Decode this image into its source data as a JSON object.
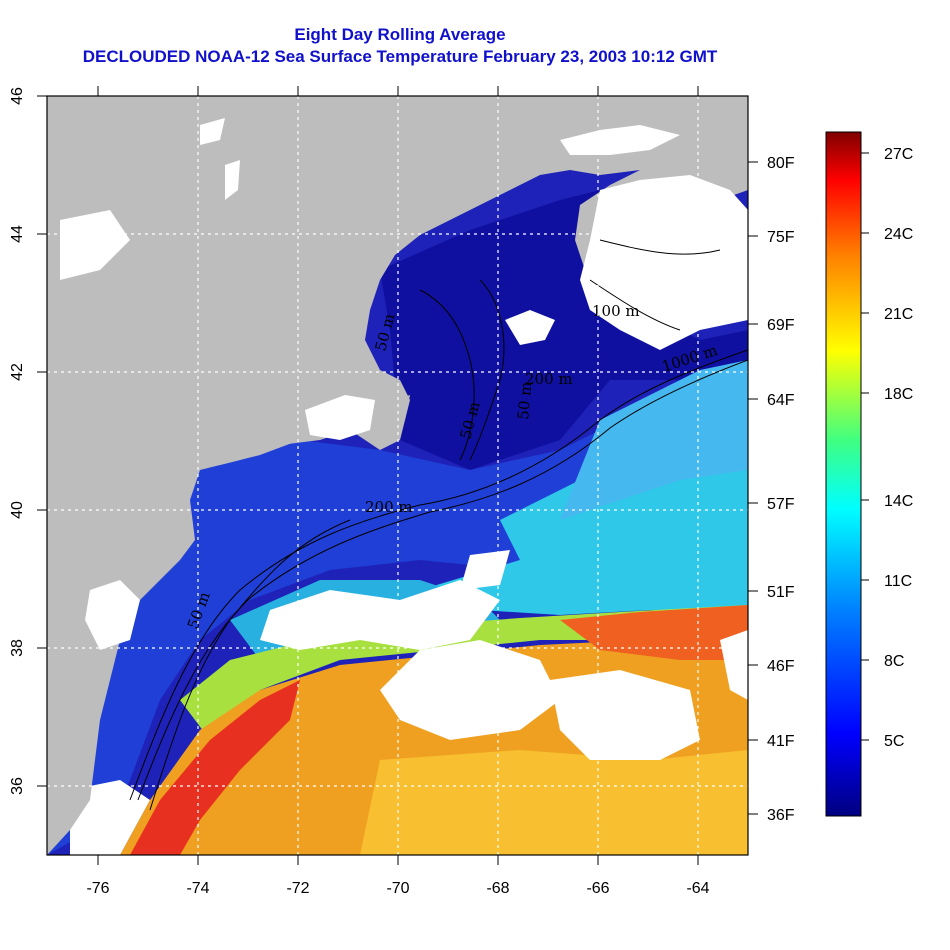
{
  "title": {
    "line1": "Eight Day Rolling Average",
    "line2": "DECLOUDED NOAA-12 Sea Surface Temperature February 23, 2003 10:12 GMT"
  },
  "map": {
    "lon_ticks": [
      "-76",
      "-74",
      "-72",
      "-70",
      "-68",
      "-66",
      "-64"
    ],
    "lat_ticks": [
      "36",
      "38",
      "40",
      "42",
      "44",
      "46"
    ],
    "fahrenheit_ticks": [
      "80F",
      "75F",
      "69F",
      "64F",
      "57F",
      "51F",
      "46F",
      "41F",
      "36F"
    ],
    "contour_labels": [
      "200 m",
      "1000 m",
      "200 m",
      "50 m",
      "50 m",
      "100 m",
      "50 m",
      "50 m"
    ],
    "colors": {
      "land": "#bdbdbd",
      "cloud": "#ffffff"
    }
  },
  "colorbar": {
    "labels": [
      "27C",
      "24C",
      "21C",
      "18C",
      "14C",
      "11C",
      "8C",
      "5C"
    ]
  }
}
